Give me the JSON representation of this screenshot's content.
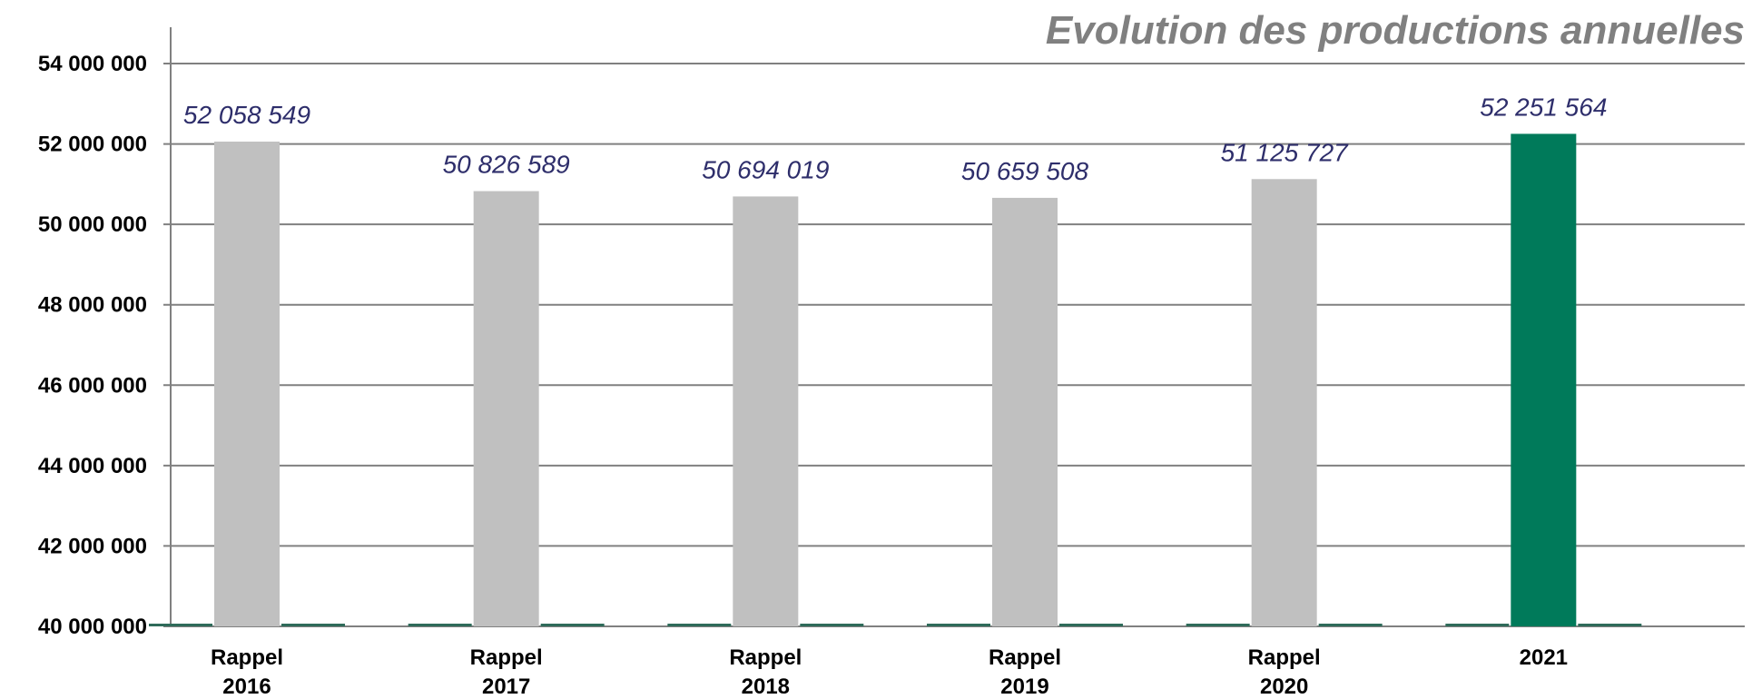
{
  "chart_data": {
    "type": "bar",
    "title": "Evolution des productions annuelles",
    "xlabel": "",
    "ylabel": "",
    "categories": [
      [
        "Rappel",
        "2016"
      ],
      [
        "Rappel",
        "2017"
      ],
      [
        "Rappel",
        "2018"
      ],
      [
        "Rappel",
        "2019"
      ],
      [
        "Rappel",
        "2020"
      ],
      [
        "2021"
      ]
    ],
    "values": [
      52058549,
      50826589,
      50694019,
      50659508,
      51125727,
      52251564
    ],
    "value_labels": [
      "52 058 549",
      "50 826 589",
      "50 694 019",
      "50 659 508",
      "51 125 727",
      "52 251 564"
    ],
    "ylim": [
      40000000,
      54000000
    ],
    "yticks": [
      40000000,
      42000000,
      44000000,
      46000000,
      48000000,
      50000000,
      52000000,
      54000000
    ],
    "ytick_labels": [
      "40 000 000",
      "42 000 000",
      "44 000 000",
      "46 000 000",
      "48 000 000",
      "50 000 000",
      "52 000 000",
      "54 000 000"
    ],
    "grid": true,
    "legend": "none",
    "colors": {
      "bar": "#c0c0c0",
      "highlight_bar": "#007a5a",
      "baseline_segment": "#2f6b5a",
      "grid": "#808080",
      "title": "#808080",
      "data_label": "#2e2e6b"
    },
    "highlight_index": 5
  }
}
